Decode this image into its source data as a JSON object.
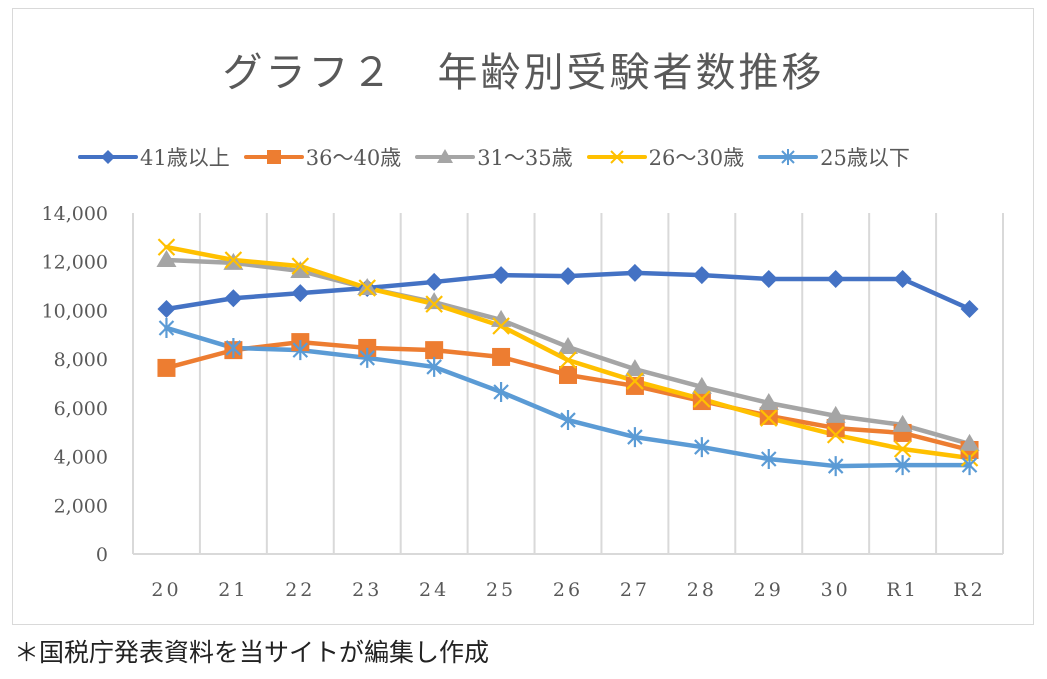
{
  "chart_data": {
    "type": "line",
    "title": "グラフ２　年齢別受験者数推移",
    "xlabel": "",
    "ylabel": "",
    "categories": [
      "20",
      "21",
      "22",
      "23",
      "24",
      "25",
      "26",
      "27",
      "28",
      "29",
      "30",
      "R1",
      "R2"
    ],
    "ylim": [
      0,
      14000
    ],
    "yticks": [
      0,
      2000,
      4000,
      6000,
      8000,
      10000,
      12000,
      14000
    ],
    "ytick_labels": [
      "0",
      "2,000",
      "4,000",
      "6,000",
      "8,000",
      "10,000",
      "12,000",
      "14,000"
    ],
    "grid": "vertical",
    "legend_position": "top",
    "series": [
      {
        "name": "41歳以上",
        "color": "#4472C4",
        "marker": "diamond",
        "values": [
          10060,
          10500,
          10710,
          10920,
          11170,
          11450,
          11410,
          11540,
          11450,
          11290,
          11290,
          11290,
          10060
        ]
      },
      {
        "name": "36～40歳",
        "color": "#ED7D31",
        "marker": "square",
        "values": [
          7640,
          8370,
          8700,
          8460,
          8370,
          8090,
          7350,
          6900,
          6280,
          5670,
          5170,
          4970,
          4270
        ]
      },
      {
        "name": "31～35歳",
        "color": "#A5A5A5",
        "marker": "triangle",
        "values": [
          12070,
          11950,
          11620,
          10920,
          10340,
          9610,
          8500,
          7590,
          6860,
          6200,
          5670,
          5300,
          4520
        ]
      },
      {
        "name": "26～30歳",
        "color": "#FFC000",
        "marker": "x",
        "values": [
          12600,
          12070,
          11820,
          10920,
          10260,
          9360,
          7960,
          7100,
          6360,
          5580,
          4890,
          4310,
          3940
        ]
      },
      {
        "name": "25歳以下",
        "color": "#5B9BD5",
        "marker": "star",
        "values": [
          9280,
          8460,
          8370,
          8050,
          7680,
          6650,
          5500,
          4800,
          4390,
          3900,
          3610,
          3650,
          3650
        ]
      }
    ]
  },
  "footnote": "＊国税庁発表資料を当サイトが編集し作成"
}
